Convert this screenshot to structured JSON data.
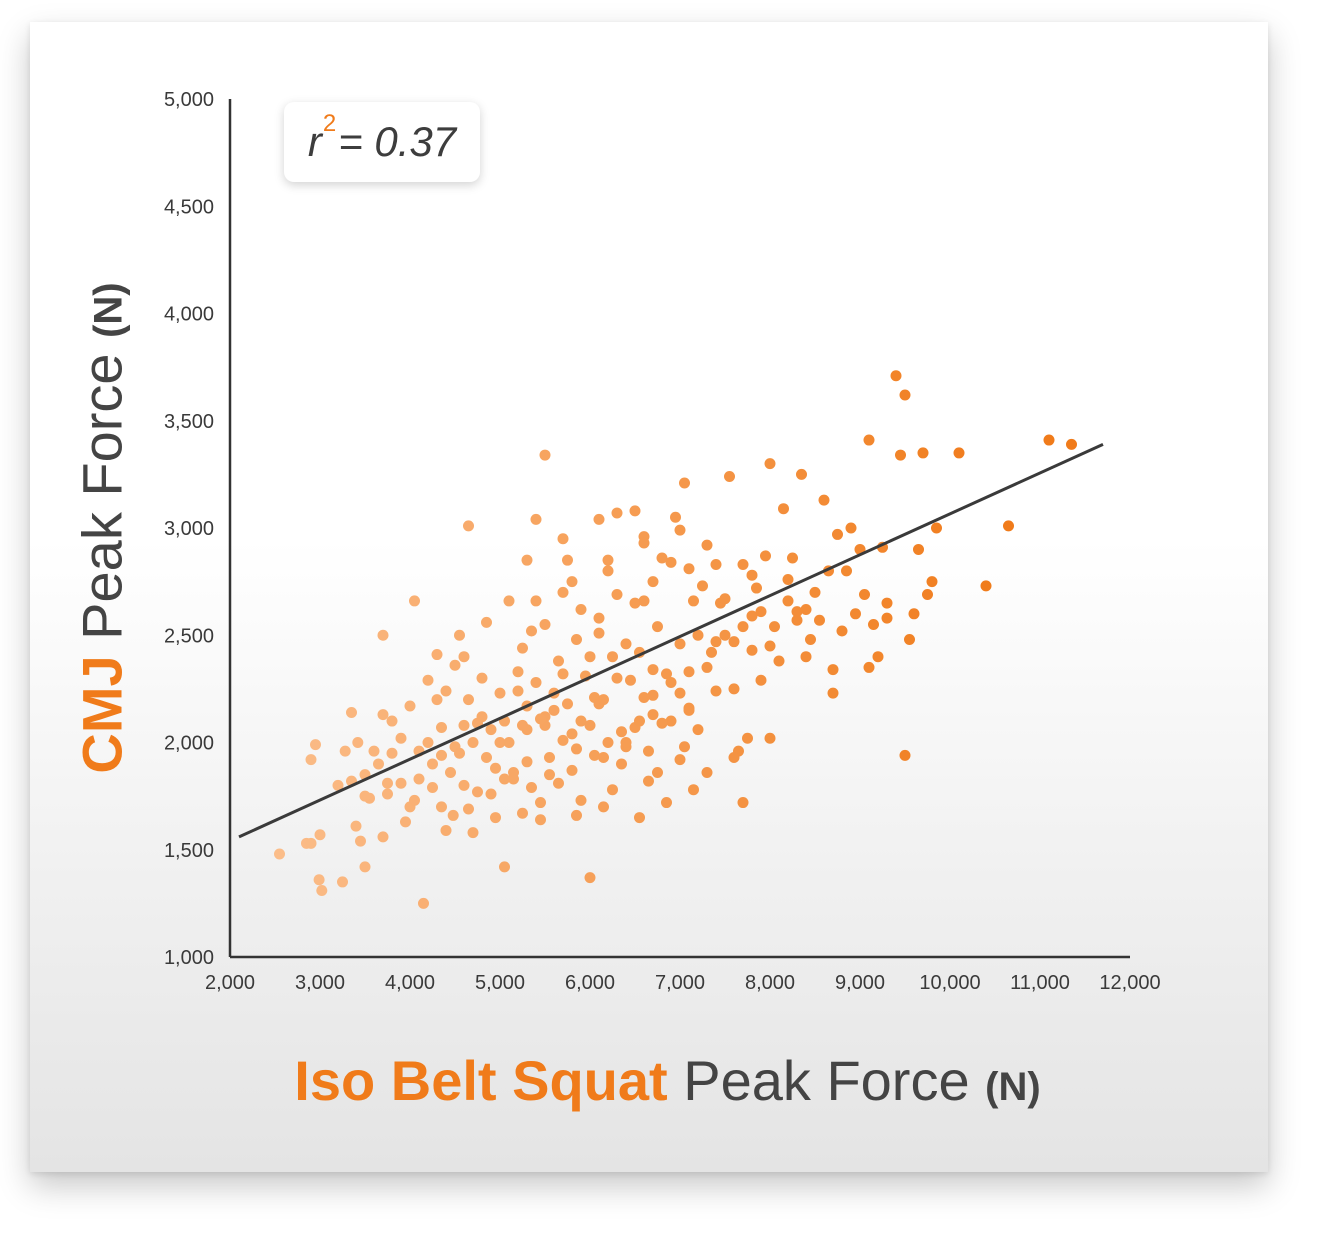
{
  "annotation": {
    "r_label": "r",
    "r_exp": "2",
    "r_value": "= 0.37"
  },
  "axis_titles": {
    "x_strong": "Iso Belt Squat",
    "x_rest": "Peak Force",
    "x_unit": "(N)",
    "y_strong": "CMJ",
    "y_rest": "Peak Force",
    "y_unit": "(N)"
  },
  "colors": {
    "accent": "#f07b1a",
    "point_light": "#fbbd8a",
    "point_dark": "#f07b1a",
    "trend": "#3a3a3a"
  },
  "chart_data": {
    "type": "scatter",
    "xlim": [
      2000,
      12000
    ],
    "ylim": [
      1000,
      5000
    ],
    "x_ticks": [
      "2,000",
      "3,000",
      "4,000",
      "5,000",
      "6,000",
      "7,000",
      "8,000",
      "9,000",
      "10,000",
      "11,000",
      "12,000"
    ],
    "y_ticks": [
      "1,000",
      "1,500",
      "2,000",
      "2,500",
      "3,000",
      "3,500",
      "4,000",
      "4,500",
      "5,000"
    ],
    "grid": false,
    "trendline": {
      "x": [
        2100,
        11700
      ],
      "y": [
        1560,
        3390
      ]
    },
    "points": [
      [
        2550,
        1480
      ],
      [
        2850,
        1530
      ],
      [
        2900,
        1530
      ],
      [
        3000,
        1570
      ],
      [
        2990,
        1360
      ],
      [
        3020,
        1310
      ],
      [
        2900,
        1920
      ],
      [
        2950,
        1990
      ],
      [
        3250,
        1350
      ],
      [
        3200,
        1800
      ],
      [
        3400,
        1610
      ],
      [
        3450,
        1540
      ],
      [
        3500,
        1420
      ],
      [
        3550,
        1740
      ],
      [
        3350,
        1820
      ],
      [
        3280,
        1960
      ],
      [
        3420,
        2000
      ],
      [
        3500,
        1750
      ],
      [
        3700,
        1560
      ],
      [
        3750,
        1810
      ],
      [
        3800,
        2100
      ],
      [
        3700,
        2130
      ],
      [
        3650,
        1900
      ],
      [
        3600,
        1960
      ],
      [
        3350,
        2140
      ],
      [
        3700,
        2500
      ],
      [
        3900,
        1810
      ],
      [
        3950,
        1630
      ],
      [
        4100,
        1960
      ],
      [
        4000,
        1700
      ],
      [
        4050,
        2660
      ],
      [
        4150,
        1250
      ],
      [
        4200,
        2000
      ],
      [
        4250,
        1790
      ],
      [
        4300,
        2200
      ],
      [
        4350,
        1940
      ],
      [
        4400,
        1590
      ],
      [
        4480,
        1660
      ],
      [
        4500,
        2360
      ],
      [
        4550,
        2500
      ],
      [
        4600,
        1800
      ],
      [
        4650,
        3010
      ],
      [
        4700,
        1580
      ],
      [
        4750,
        2090
      ],
      [
        4800,
        2300
      ],
      [
        4850,
        2560
      ],
      [
        4900,
        1760
      ],
      [
        4950,
        1880
      ],
      [
        5000,
        2000
      ],
      [
        5050,
        1420
      ],
      [
        5100,
        2660
      ],
      [
        5150,
        1860
      ],
      [
        5200,
        2240
      ],
      [
        5250,
        2440
      ],
      [
        5300,
        1910
      ],
      [
        5350,
        2520
      ],
      [
        5400,
        3040
      ],
      [
        5450,
        1720
      ],
      [
        5500,
        2120
      ],
      [
        5500,
        3340
      ],
      [
        5550,
        1850
      ],
      [
        5600,
        2150
      ],
      [
        5650,
        2380
      ],
      [
        5700,
        2700
      ],
      [
        5750,
        2850
      ],
      [
        5800,
        1870
      ],
      [
        5850,
        2480
      ],
      [
        5900,
        1730
      ],
      [
        5950,
        2310
      ],
      [
        6000,
        1370
      ],
      [
        6050,
        2210
      ],
      [
        6100,
        2580
      ],
      [
        6150,
        1930
      ],
      [
        6200,
        2800
      ],
      [
        6250,
        2400
      ],
      [
        6300,
        3070
      ],
      [
        6350,
        2050
      ],
      [
        6400,
        1980
      ],
      [
        6450,
        2290
      ],
      [
        6500,
        2650
      ],
      [
        6550,
        2420
      ],
      [
        6600,
        2960
      ],
      [
        6650,
        1820
      ],
      [
        6700,
        2130
      ],
      [
        6750,
        2540
      ],
      [
        6800,
        2860
      ],
      [
        6850,
        1720
      ],
      [
        6900,
        2280
      ],
      [
        6950,
        3050
      ],
      [
        7000,
        2460
      ],
      [
        7050,
        3210
      ],
      [
        7100,
        2160
      ],
      [
        7150,
        2660
      ],
      [
        7200,
        2060
      ],
      [
        7250,
        2730
      ],
      [
        7300,
        1860
      ],
      [
        7350,
        2420
      ],
      [
        7400,
        2240
      ],
      [
        7450,
        2650
      ],
      [
        7500,
        2500
      ],
      [
        7550,
        3240
      ],
      [
        7600,
        2250
      ],
      [
        7650,
        1960
      ],
      [
        7700,
        2830
      ],
      [
        7750,
        2020
      ],
      [
        7800,
        2590
      ],
      [
        7850,
        2720
      ],
      [
        7900,
        2290
      ],
      [
        7950,
        2870
      ],
      [
        8000,
        3300
      ],
      [
        8050,
        2540
      ],
      [
        8100,
        2380
      ],
      [
        8150,
        3090
      ],
      [
        8200,
        2760
      ],
      [
        8250,
        2860
      ],
      [
        8300,
        2610
      ],
      [
        8350,
        3250
      ],
      [
        8400,
        2400
      ],
      [
        8450,
        2480
      ],
      [
        8500,
        2700
      ],
      [
        8550,
        2570
      ],
      [
        8600,
        3130
      ],
      [
        8650,
        2800
      ],
      [
        8700,
        2230
      ],
      [
        8750,
        2970
      ],
      [
        8800,
        2520
      ],
      [
        8850,
        2800
      ],
      [
        8900,
        3000
      ],
      [
        8950,
        2600
      ],
      [
        9000,
        2900
      ],
      [
        9050,
        2690
      ],
      [
        9100,
        3410
      ],
      [
        9150,
        2550
      ],
      [
        9200,
        2400
      ],
      [
        9250,
        2910
      ],
      [
        9300,
        2650
      ],
      [
        9400,
        3710
      ],
      [
        9450,
        3340
      ],
      [
        9500,
        1940
      ],
      [
        9500,
        3620
      ],
      [
        9550,
        2480
      ],
      [
        9600,
        2600
      ],
      [
        9650,
        2900
      ],
      [
        9700,
        3350
      ],
      [
        9750,
        2690
      ],
      [
        9800,
        2750
      ],
      [
        9850,
        3000
      ],
      [
        10100,
        3350
      ],
      [
        10400,
        2730
      ],
      [
        10650,
        3010
      ],
      [
        11100,
        3410
      ],
      [
        11350,
        3390
      ],
      [
        4300,
        2410
      ],
      [
        4400,
        2240
      ],
      [
        4600,
        2080
      ],
      [
        5200,
        2330
      ],
      [
        5800,
        2040
      ],
      [
        6100,
        2180
      ],
      [
        6500,
        2070
      ],
      [
        6700,
        2220
      ],
      [
        7000,
        2230
      ],
      [
        7200,
        2500
      ],
      [
        4800,
        2120
      ],
      [
        5000,
        2230
      ],
      [
        5400,
        2280
      ],
      [
        5600,
        2230
      ],
      [
        5900,
        2100
      ],
      [
        6300,
        2300
      ],
      [
        6400,
        2000
      ],
      [
        6600,
        2210
      ],
      [
        6900,
        2100
      ],
      [
        7100,
        2330
      ],
      [
        7300,
        2350
      ],
      [
        7600,
        2470
      ],
      [
        4500,
        1980
      ],
      [
        4700,
        2000
      ],
      [
        4900,
        2060
      ],
      [
        5100,
        2000
      ],
      [
        5300,
        2060
      ],
      [
        5500,
        2080
      ],
      [
        5700,
        2010
      ],
      [
        6000,
        2080
      ],
      [
        6200,
        2000
      ],
      [
        6800,
        2090
      ],
      [
        7000,
        1920
      ],
      [
        4200,
        2290
      ],
      [
        4600,
        2400
      ],
      [
        5300,
        2170
      ],
      [
        5700,
        2320
      ],
      [
        6100,
        2510
      ],
      [
        6400,
        2460
      ],
      [
        6700,
        2340
      ],
      [
        7100,
        2150
      ],
      [
        7400,
        2470
      ],
      [
        7800,
        2430
      ],
      [
        4000,
        2170
      ],
      [
        4350,
        2070
      ],
      [
        4650,
        2200
      ],
      [
        5050,
        2100
      ],
      [
        5250,
        2080
      ],
      [
        5450,
        2110
      ],
      [
        5750,
        2180
      ],
      [
        6150,
        2200
      ],
      [
        6550,
        2100
      ],
      [
        6850,
        2320
      ],
      [
        3800,
        1950
      ],
      [
        4100,
        1830
      ],
      [
        4450,
        1860
      ],
      [
        4750,
        1770
      ],
      [
        5150,
        1830
      ],
      [
        5350,
        1790
      ],
      [
        5650,
        1810
      ],
      [
        6050,
        1940
      ],
      [
        6350,
        1900
      ],
      [
        6750,
        1860
      ],
      [
        7050,
        1980
      ],
      [
        3900,
        2020
      ],
      [
        4250,
        1900
      ],
      [
        4550,
        1950
      ],
      [
        4850,
        1930
      ],
      [
        5050,
        1830
      ],
      [
        5550,
        1930
      ],
      [
        5850,
        1970
      ],
      [
        6250,
        1780
      ],
      [
        6650,
        1960
      ],
      [
        3500,
        1850
      ],
      [
        3750,
        1760
      ],
      [
        4050,
        1730
      ],
      [
        4350,
        1700
      ],
      [
        4650,
        1690
      ],
      [
        4950,
        1650
      ],
      [
        5250,
        1670
      ],
      [
        5450,
        1640
      ],
      [
        5850,
        1660
      ],
      [
        6150,
        1700
      ],
      [
        6550,
        1650
      ],
      [
        7150,
        1780
      ],
      [
        7600,
        1930
      ],
      [
        7700,
        1720
      ],
      [
        8000,
        2020
      ],
      [
        5500,
        2550
      ],
      [
        5900,
        2620
      ],
      [
        6300,
        2690
      ],
      [
        6700,
        2750
      ],
      [
        7100,
        2810
      ],
      [
        7500,
        2670
      ],
      [
        7900,
        2610
      ],
      [
        8300,
        2570
      ],
      [
        5400,
        2660
      ],
      [
        5800,
        2750
      ],
      [
        6200,
        2850
      ],
      [
        6600,
        2930
      ],
      [
        7000,
        2990
      ],
      [
        7400,
        2830
      ],
      [
        7800,
        2780
      ],
      [
        8200,
        2660
      ],
      [
        5300,
        2850
      ],
      [
        5700,
        2950
      ],
      [
        6100,
        3040
      ],
      [
        6500,
        3080
      ],
      [
        6900,
        2840
      ],
      [
        7300,
        2920
      ],
      [
        8700,
        2340
      ],
      [
        9100,
        2350
      ],
      [
        9300,
        2580
      ],
      [
        8400,
        2620
      ],
      [
        8000,
        2450
      ],
      [
        7700,
        2540
      ],
      [
        6000,
        2400
      ],
      [
        6600,
        2660
      ]
    ]
  }
}
